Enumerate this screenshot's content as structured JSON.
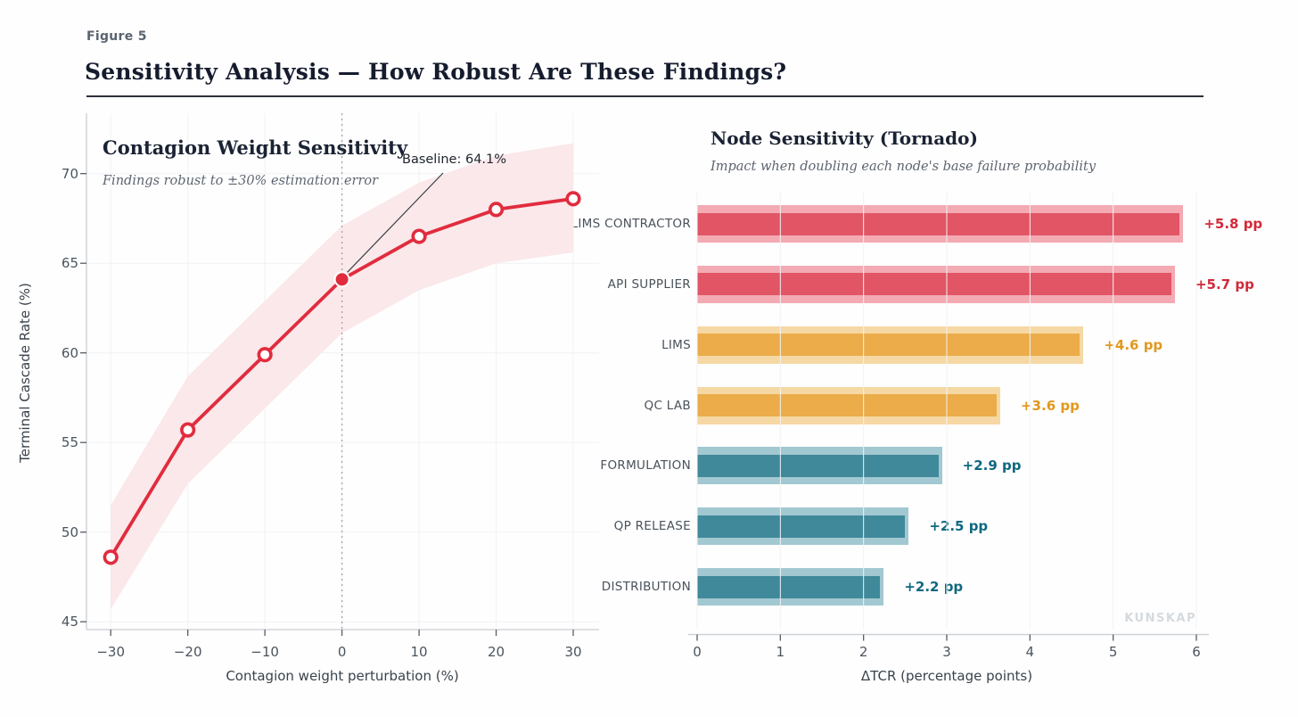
{
  "figure": {
    "label": "Figure 5",
    "title": "Sensitivity Analysis — How Robust Are These Findings?"
  },
  "watermark": "KUNSKAP",
  "chart_data": [
    {
      "type": "line",
      "title": "Contagion Weight Sensitivity",
      "subtitle": "Findings robust to ±30% estimation error",
      "xlabel": "Contagion weight perturbation (%)",
      "ylabel": "Terminal Cascade Rate (%)",
      "x": [
        -30,
        -20,
        -10,
        0,
        10,
        20,
        30
      ],
      "y": [
        48.6,
        55.7,
        59.9,
        64.1,
        66.5,
        68.0,
        68.6
      ],
      "band_upper": [
        51.5,
        58.7,
        62.9,
        67.1,
        69.5,
        71.0,
        71.7
      ],
      "band_lower": [
        45.7,
        52.7,
        56.9,
        61.1,
        63.5,
        65.0,
        65.6
      ],
      "xticks": [
        -30,
        -20,
        -10,
        0,
        10,
        20,
        30
      ],
      "yticks": [
        45,
        50,
        55,
        60,
        65,
        70
      ],
      "xlim": [
        -33.1,
        33.4
      ],
      "ylim": [
        44.6,
        73.4
      ],
      "baseline": {
        "x": 0,
        "y": 64.1,
        "annotation": "Baseline: 64.1%"
      },
      "line_color": "#e12c3e",
      "band_color": "#fae8ea",
      "baseline_guide_color": "#9aa0a6",
      "grid": true,
      "legend": "none"
    },
    {
      "type": "bar",
      "orientation": "horizontal",
      "title": "Node Sensitivity (Tornado)",
      "subtitle": "Impact when doubling each node's base failure probability",
      "xlabel": "ΔTCR (percentage points)",
      "categories": [
        "LIMS CONTRACTOR",
        "API SUPPLIER",
        "LIMS",
        "QC LAB",
        "FORMULATION",
        "QP RELEASE",
        "DISTRIBUTION"
      ],
      "values": [
        5.8,
        5.7,
        4.6,
        3.6,
        2.9,
        2.5,
        2.2
      ],
      "value_labels": [
        "+5.8 pp",
        "+5.7 pp",
        "+4.6 pp",
        "+3.6 pp",
        "+2.9 pp",
        "+2.5 pp",
        "+2.2 pp"
      ],
      "color_groups": [
        "red",
        "red",
        "amber",
        "amber",
        "teal",
        "teal",
        "teal"
      ],
      "palette": {
        "red": {
          "bar": "#e15565",
          "band": "#f3aab3",
          "label": "#d2293a"
        },
        "amber": {
          "bar": "#ebac49",
          "band": "#f5d8a4",
          "label": "#e1981f"
        },
        "teal": {
          "bar": "#40899a",
          "band": "#a2c8d1",
          "label": "#0f6880"
        }
      },
      "xticks": [
        0,
        1,
        2,
        3,
        4,
        5,
        6
      ],
      "xlim": [
        0,
        6.15
      ],
      "grid": true,
      "legend": "none"
    }
  ]
}
